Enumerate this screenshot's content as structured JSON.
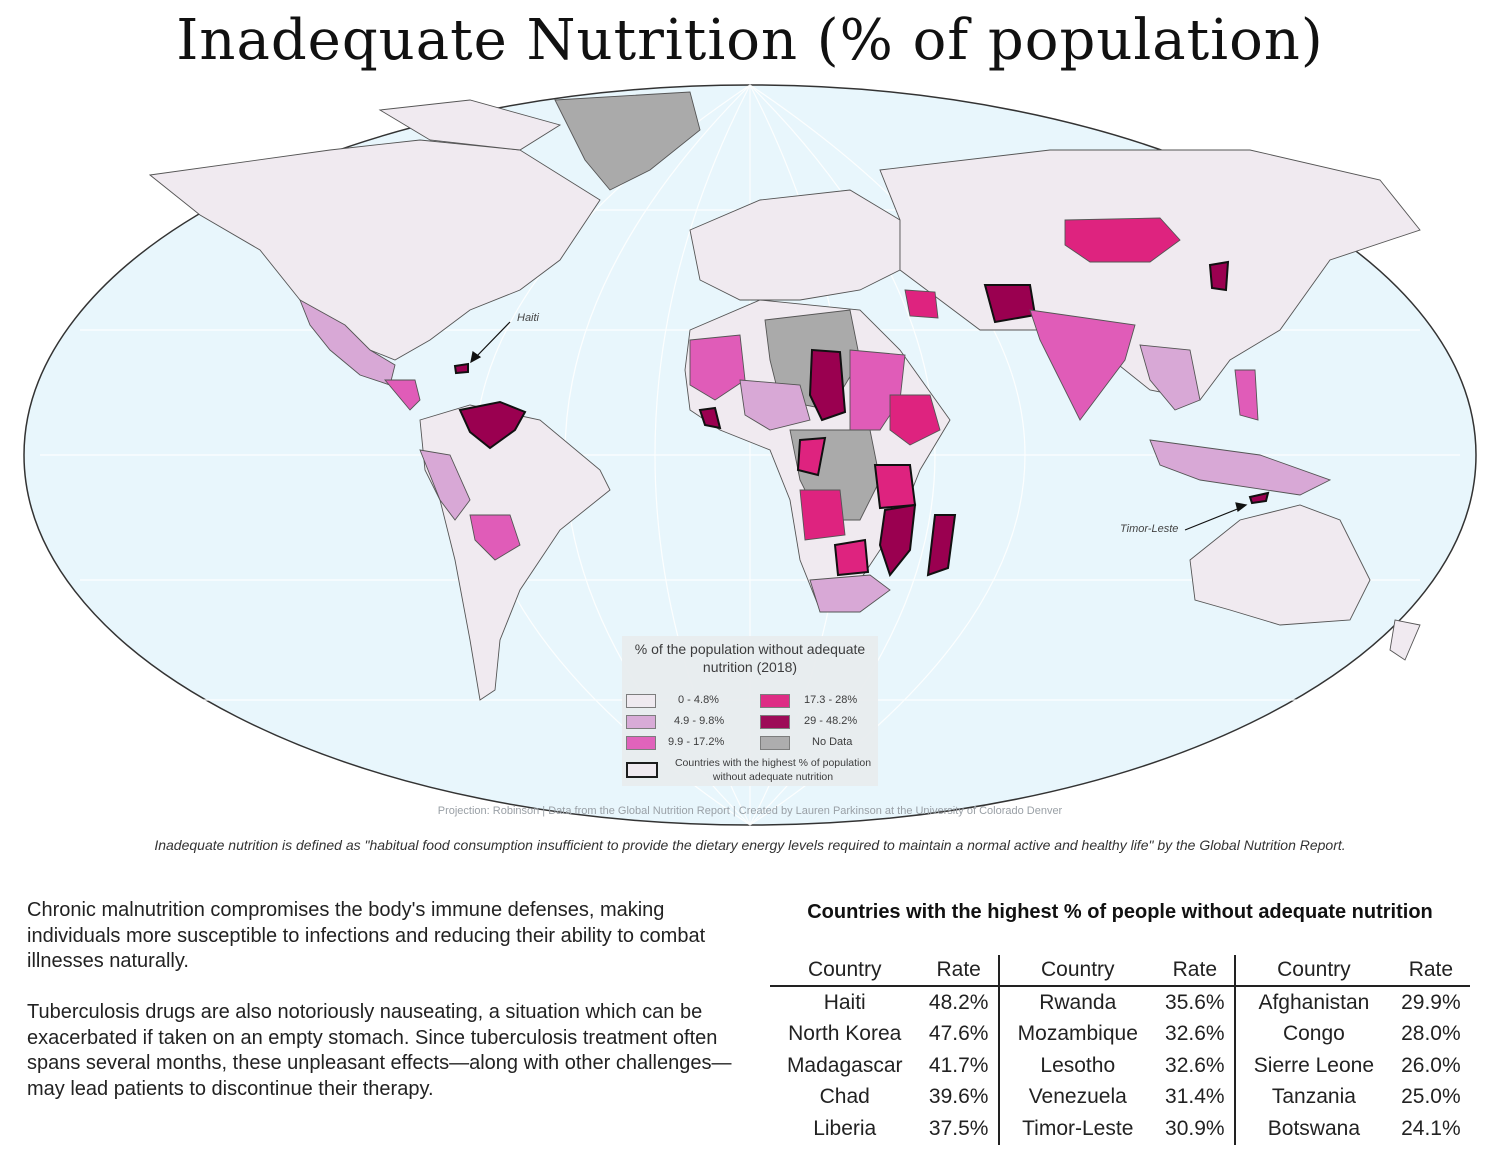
{
  "title": "Inadequate Nutrition (% of population)",
  "annotations": {
    "haiti": "Haiti",
    "timor": "Timor-Leste"
  },
  "legend": {
    "title": "% of the population without adequate nutrition (2018)",
    "classes": [
      {
        "label": "0 - 4.8%",
        "color": "#f0eaf0"
      },
      {
        "label": "4.9 - 9.8%",
        "color": "#d8a8d6"
      },
      {
        "label": "9.9 - 17.2%",
        "color": "#e05cb8"
      },
      {
        "label": "17.3 - 28%",
        "color": "#de237f"
      },
      {
        "label": "29 - 48.2%",
        "color": "#9a0050"
      },
      {
        "label": "No Data",
        "color": "#aaaaaa"
      }
    ],
    "outline_label": "Countries with the highest % of population without adequate nutrition"
  },
  "credit": "Projection: Robinson | Data from the Global Nutrition Report | Created by Lauren Parkinson at the University of Colorado Denver",
  "definition": "Inadequate nutrition is defined as \"habitual food consumption insufficient to provide the dietary energy levels required to maintain a normal active and healthy life\" by the Global Nutrition Report.",
  "paragraphs": [
    "Chronic malnutrition compromises the body's immune defenses, making individuals more susceptible to infections and reducing their ability to combat illnesses naturally.",
    "Tuberculosis drugs are also notoriously nauseating, a situation which can be exacerbated if taken on an empty stomach. Since tuberculosis treatment often spans several months, these unpleasant effects—along with other challenges—may lead patients to discontinue their therapy."
  ],
  "table": {
    "title": "Countries with the highest % of people without adequate nutrition",
    "headers": [
      "Country",
      "Rate",
      "Country",
      "Rate",
      "Country",
      "Rate"
    ],
    "rows": [
      [
        "Haiti",
        "48.2%",
        "Rwanda",
        "35.6%",
        "Afghanistan",
        "29.9%"
      ],
      [
        "North Korea",
        "47.6%",
        "Mozambique",
        "32.6%",
        "Congo",
        "28.0%"
      ],
      [
        "Madagascar",
        "41.7%",
        "Lesotho",
        "32.6%",
        "Sierre Leone",
        "26.0%"
      ],
      [
        "Chad",
        "39.6%",
        "Venezuela",
        "31.4%",
        "Tanzania",
        "25.0%"
      ],
      [
        "Liberia",
        "37.5%",
        "Timor-Leste",
        "30.9%",
        "Botswana",
        "24.1%"
      ]
    ]
  },
  "colors": {
    "ocean": "#e8f6fc",
    "land_border": "#555555",
    "graticule": "#ffffff"
  }
}
